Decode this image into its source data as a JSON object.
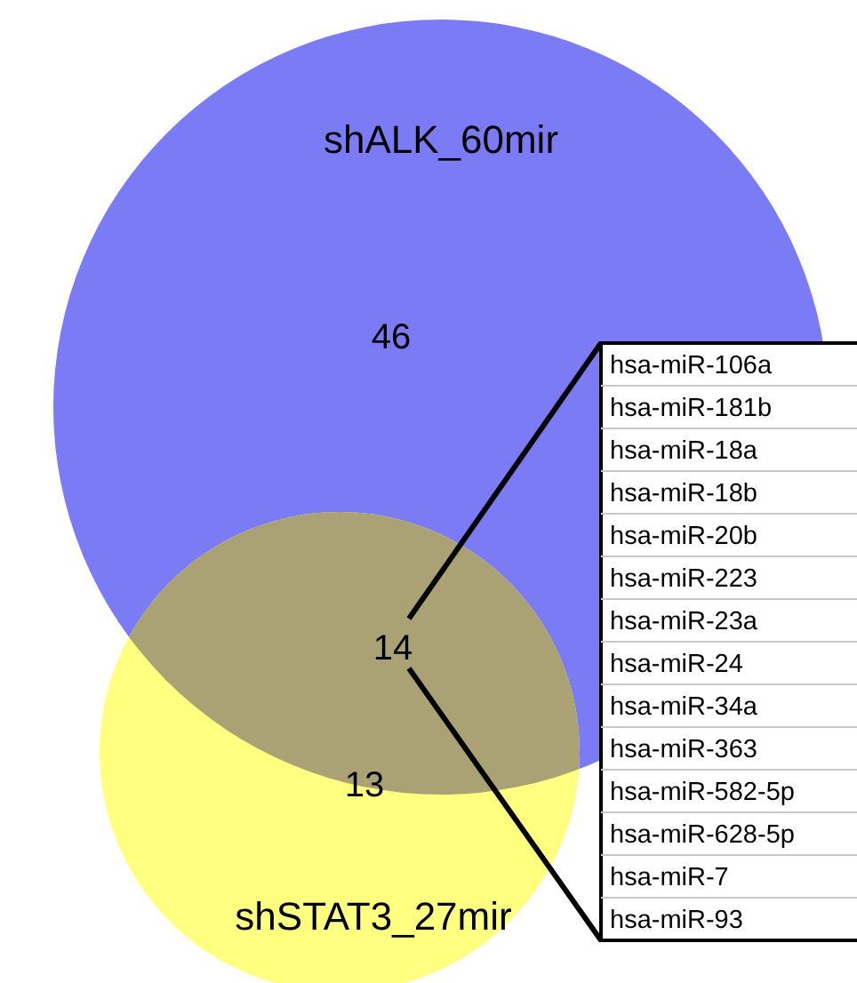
{
  "chart_data": {
    "type": "other",
    "categories": [
      "shALK_60mir",
      null,
      "shSTAT3_27mir"
    ],
    "values": [
      46,
      14,
      13
    ],
    "data_labels": true,
    "colors": [
      "#7b7bf5",
      "#aaa274",
      "#ffff80"
    ],
    "annotations": [
      "hsa-miR-106a",
      "hsa-miR-181b",
      "hsa-miR-18a",
      "hsa-miR-18b",
      "hsa-miR-20b",
      "hsa-miR-223",
      "hsa-miR-23a",
      "hsa-miR-24",
      "hsa-miR-34a",
      "hsa-miR-363",
      "hsa-miR-582-5p",
      "hsa-miR-628-5p",
      "hsa-miR-7",
      "hsa-miR-93"
    ]
  }
}
